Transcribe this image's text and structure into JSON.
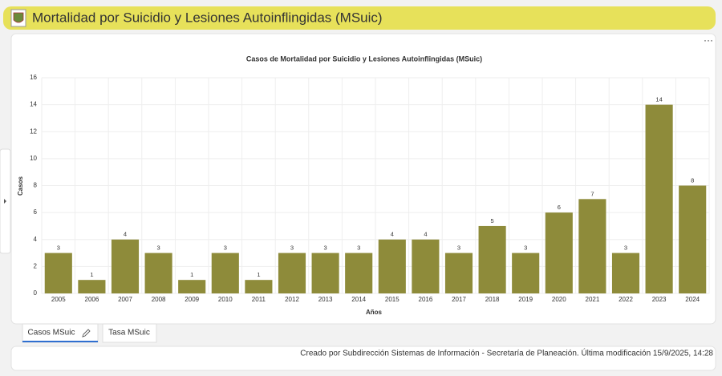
{
  "header": {
    "title": "Mortalidad por Suicidio y Lesiones Autoinflingidas (MSuic)"
  },
  "chart_data": {
    "type": "bar",
    "title": "Casos de Mortalidad por Suicidio y Lesiones Autoinflingidas (MSuic)",
    "x_label": "Años",
    "y_label": "Casos",
    "categories": [
      "2005",
      "2006",
      "2007",
      "2008",
      "2009",
      "2010",
      "2011",
      "2012",
      "2013",
      "2014",
      "2015",
      "2016",
      "2017",
      "2018",
      "2019",
      "2020",
      "2021",
      "2022",
      "2023",
      "2024"
    ],
    "values": [
      3,
      1,
      4,
      3,
      1,
      3,
      1,
      3,
      3,
      3,
      4,
      4,
      3,
      5,
      3,
      6,
      7,
      3,
      14,
      8
    ],
    "color": "#8e8b3a",
    "ylim": [
      0,
      16
    ],
    "yticks": [
      0,
      2,
      4,
      6,
      8,
      10,
      12,
      14,
      16
    ],
    "grid": true
  },
  "tabs": [
    "Casos MSuic",
    "Tasa MSuic"
  ],
  "footer": {
    "text": "Creado por Subdirección Sistemas de Información - Secretaría de Planeación. Última modificación 15/9/2025, 14:28"
  }
}
